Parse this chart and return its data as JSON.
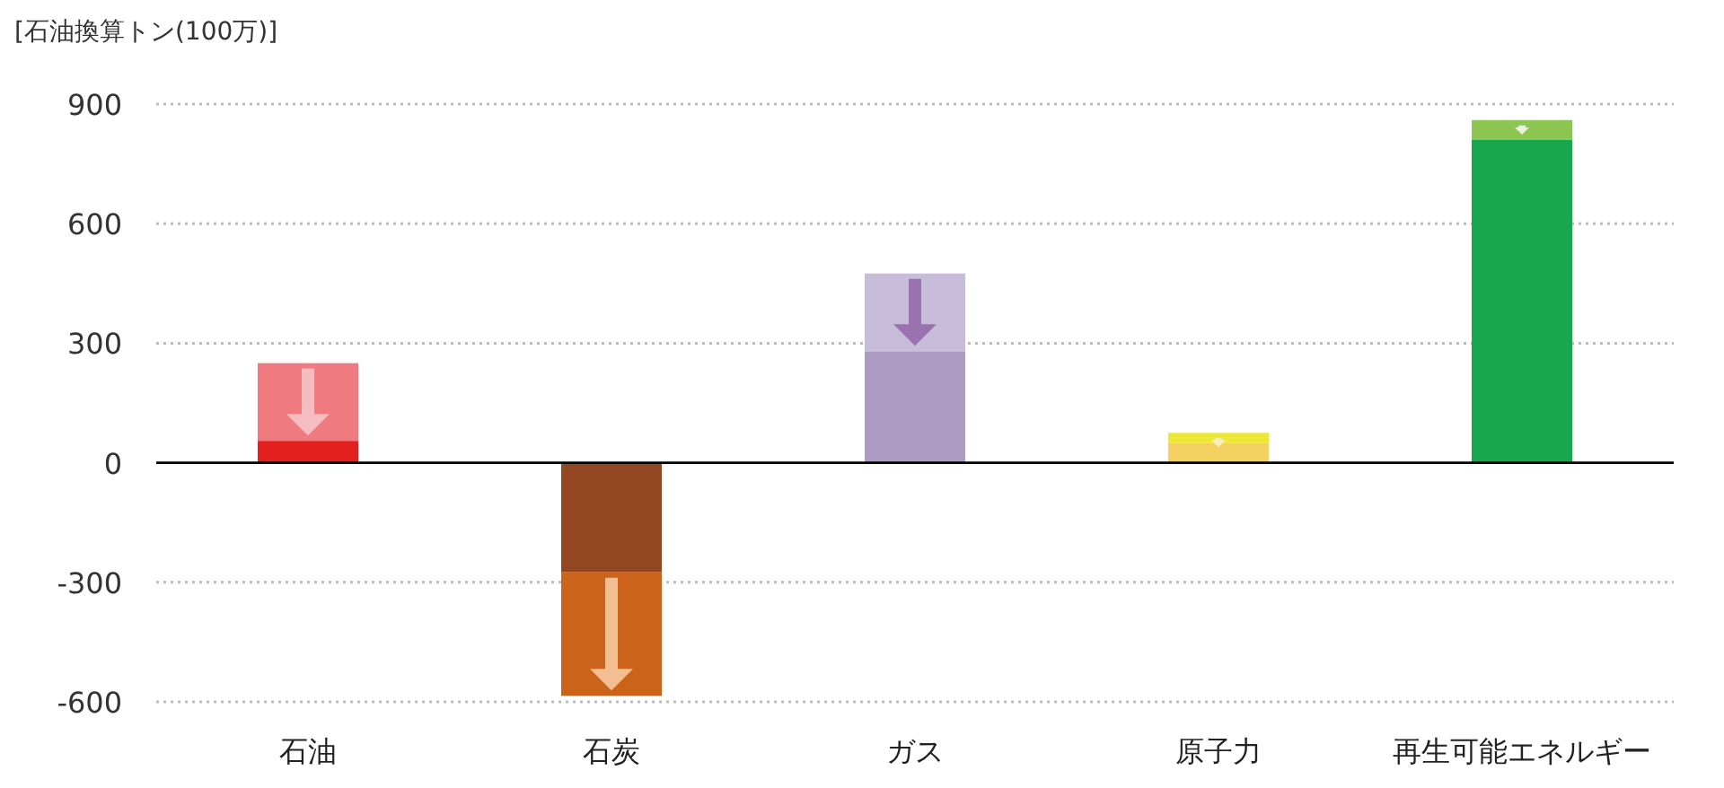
{
  "chart_data": {
    "type": "bar",
    "stacked": true,
    "ylabel": "[石油換算トン(100万)]",
    "categories": [
      "石油",
      "石炭",
      "ガス",
      "原子力",
      "再生可能エネルギー"
    ],
    "series": [
      {
        "colors": [
          "#e41f1f",
          "#934622",
          "#ac9cc3",
          "#f4d060",
          "#18a64f"
        ],
        "values": [
          55,
          -275,
          280,
          50,
          810
        ]
      },
      {
        "colors": [
          "#ef7b80",
          "#cc631b",
          "#c7bcd9",
          "#ede838",
          "#8cc552"
        ],
        "values": [
          195,
          -310,
          195,
          25,
          50
        ]
      }
    ],
    "ylim": [
      -600,
      900
    ],
    "yticks": [
      -600,
      -300,
      0,
      300,
      600,
      900
    ],
    "grid": "y"
  }
}
